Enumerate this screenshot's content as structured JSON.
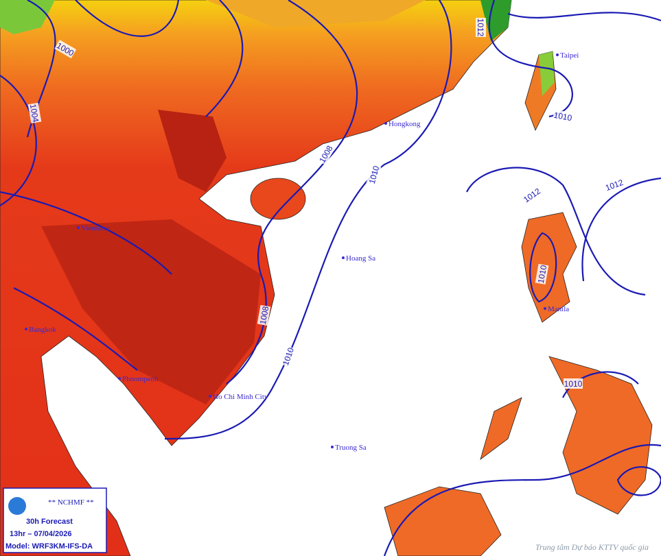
{
  "map": {
    "cities": [
      "Taipei",
      "Hongkong",
      "Vientiane",
      "Hoang Sa",
      "Manila",
      "Bangkok",
      "Phnompenh",
      "Ho Chi Minh City",
      "Truong Sa"
    ],
    "isobar_labels": [
      1000,
      1004,
      1008,
      1010,
      1010,
      1012,
      1012,
      1012,
      1010,
      1010,
      1008,
      1010
    ],
    "info_box": {
      "org": "** NCHMF **",
      "forecast": "30h Forecast",
      "time": "13hr – 07/04/2026",
      "model": "Model: WRF3KM-IFS-DA"
    },
    "credit": "Trung tâm Dự báo KTTV quốc gia"
  }
}
